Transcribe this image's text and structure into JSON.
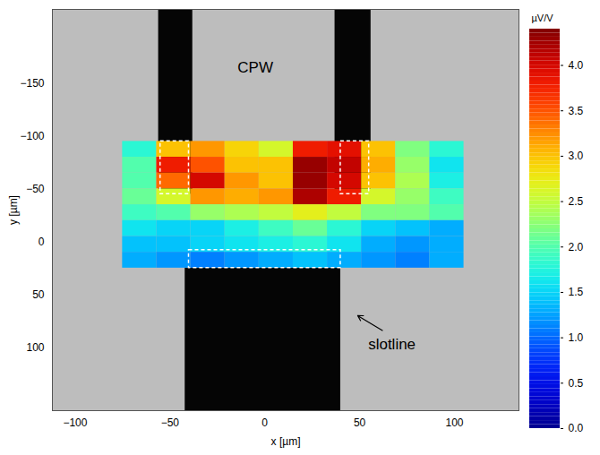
{
  "chart_data": {
    "type": "heatmap",
    "x_label": "x [µm]",
    "y_label": "y [µm]",
    "xlim": [
      -112,
      134
    ],
    "ylim": [
      -220,
      160
    ],
    "xticks": [
      -100,
      -50,
      0,
      50,
      100
    ],
    "yticks": [
      -150,
      -100,
      -50,
      0,
      50,
      100
    ],
    "heatmap": {
      "x_edges": [
        -75,
        -57,
        -39,
        -21,
        -3,
        15,
        33,
        51,
        69,
        87,
        105
      ],
      "y_edges": [
        -95,
        -80,
        -65,
        -50,
        -35,
        -20,
        -5,
        10,
        25
      ],
      "values": [
        [
          1.8,
          3.0,
          3.2,
          2.9,
          2.6,
          3.8,
          3.9,
          3.0,
          2.2,
          1.8
        ],
        [
          2.0,
          3.8,
          3.5,
          3.0,
          3.0,
          4.3,
          4.1,
          3.1,
          2.3,
          1.6
        ],
        [
          2.0,
          3.4,
          4.0,
          3.2,
          3.0,
          4.3,
          4.0,
          3.0,
          2.4,
          1.7
        ],
        [
          2.1,
          2.6,
          3.2,
          3.1,
          3.2,
          4.2,
          3.8,
          2.6,
          2.3,
          1.9
        ],
        [
          1.9,
          2.0,
          2.3,
          2.4,
          2.5,
          2.7,
          2.5,
          2.2,
          2.2,
          2.0
        ],
        [
          1.6,
          1.5,
          1.5,
          1.7,
          1.9,
          2.1,
          1.8,
          1.5,
          1.4,
          1.3
        ],
        [
          1.4,
          1.4,
          1.5,
          1.6,
          1.7,
          1.8,
          1.6,
          1.3,
          1.2,
          1.3
        ],
        [
          1.3,
          1.2,
          1.1,
          1.2,
          1.3,
          1.4,
          1.3,
          1.2,
          1.1,
          1.3
        ]
      ]
    },
    "colorbar": {
      "label": "µV/V",
      "range": [
        0,
        4.4
      ],
      "ticks": [
        0,
        0.5,
        1,
        1.5,
        2,
        2.5,
        3,
        3.5,
        4
      ]
    },
    "conductors": [
      {
        "x1": -56,
        "x2": -38,
        "y1": -220,
        "y2": -45
      },
      {
        "x1": 37,
        "x2": 56,
        "y1": -220,
        "y2": -45
      },
      {
        "x1": -42,
        "x2": 40,
        "y1": 25,
        "y2": 160
      }
    ],
    "outlines": [
      {
        "x1": -55,
        "x2": -40,
        "y1": -95,
        "y2": -45
      },
      {
        "x1": 40,
        "x2": 55,
        "y1": -95,
        "y2": -45
      },
      {
        "x1": -40,
        "x2": 40,
        "y1": 8,
        "y2": 25
      }
    ],
    "annotations": [
      {
        "text": "CPW",
        "x": -5,
        "y": -165
      },
      {
        "text": "slotline",
        "x": 67,
        "y": 97,
        "arrow_from": [
          62,
          84
        ],
        "arrow_to": [
          49,
          70
        ]
      }
    ]
  }
}
